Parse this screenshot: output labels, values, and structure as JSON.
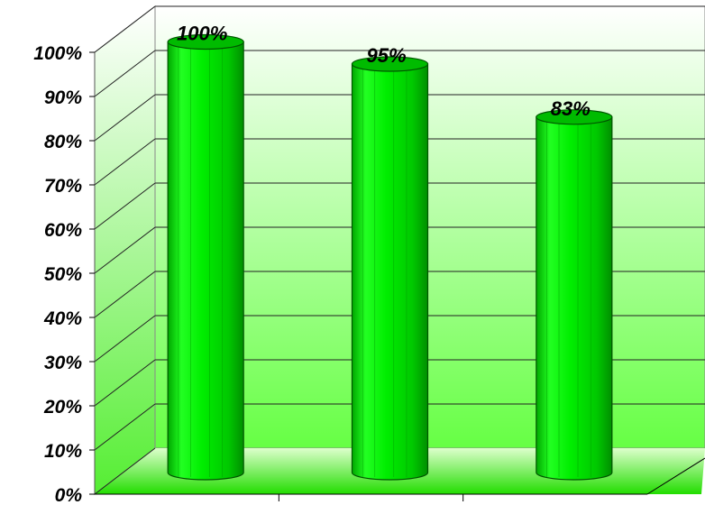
{
  "chart_data": {
    "type": "bar",
    "style": "3d-cylinder",
    "categories": [
      "",
      "",
      ""
    ],
    "values": [
      100,
      95,
      83
    ],
    "data_labels": [
      "100%",
      "95%",
      "83%"
    ],
    "ylim": [
      0,
      100
    ],
    "y_ticks": [
      0,
      10,
      20,
      30,
      40,
      50,
      60,
      70,
      80,
      90,
      100
    ],
    "y_tick_labels": [
      "0%",
      "10%",
      "20%",
      "30%",
      "40%",
      "50%",
      "60%",
      "70%",
      "80%",
      "90%",
      "100%"
    ],
    "grid": true,
    "legend": "none"
  },
  "colors": {
    "bar_main": "#00e600",
    "bar_light": "#33ff33",
    "bar_dark": "#009900",
    "bar_top": "#00bb00",
    "wall_top": "#ffffff",
    "wall_bottom": "#66ff44",
    "floor": "#33ee11"
  }
}
